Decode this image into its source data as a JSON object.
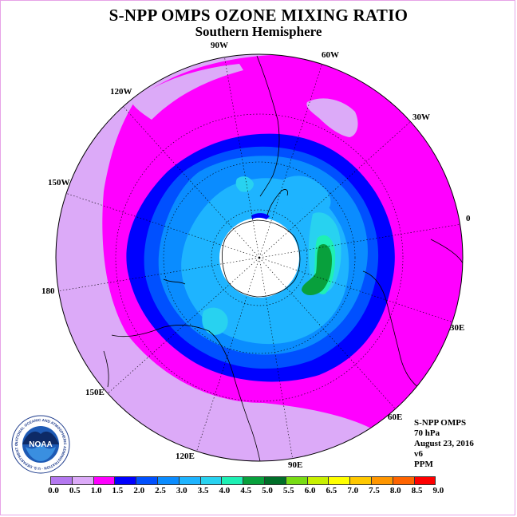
{
  "title": "S-NPP OMPS OZONE MIXING RATIO",
  "subtitle": "Southern Hemisphere",
  "longitudes": [
    "90W",
    "60W",
    "30W",
    "0",
    "30E",
    "60E",
    "90E",
    "120E",
    "150E",
    "180",
    "150W",
    "120W"
  ],
  "info": {
    "instrument": "S-NPP OMPS",
    "level": "70 hPa",
    "date": "August 23, 2016",
    "version": "v6",
    "units": "PPM"
  },
  "logo_text": "NOAA",
  "logo_ring_text": "NATIONAL OCEANIC AND ATMOSPHERIC ADMINISTRATION · U.S. DEPARTMENT OF COMMERCE",
  "color_scale": {
    "labels": [
      "0.0",
      "0.5",
      "1.0",
      "1.5",
      "2.0",
      "2.5",
      "3.0",
      "3.5",
      "4.0",
      "4.5",
      "5.0",
      "5.5",
      "6.0",
      "6.5",
      "7.0",
      "7.5",
      "8.0",
      "8.5",
      "9.0"
    ],
    "colors": [
      "#b478f0",
      "#dcaaf8",
      "#ff00ff",
      "#0000ff",
      "#0050ff",
      "#0a8cff",
      "#1eb4ff",
      "#28d2f0",
      "#1ef0b4",
      "#08a03c",
      "#006e28",
      "#78dc14",
      "#c8f000",
      "#ffff00",
      "#ffc800",
      "#ff9600",
      "#ff6400",
      "#ff0000",
      "#8b5a2b"
    ]
  }
}
